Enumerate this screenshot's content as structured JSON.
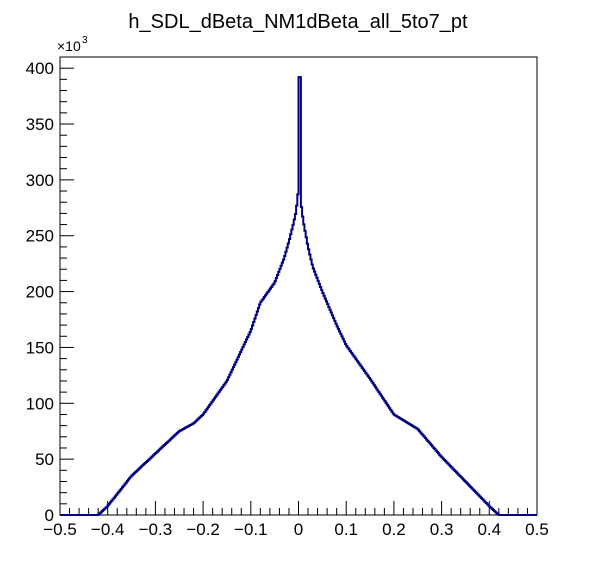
{
  "chart_data": {
    "type": "histogram",
    "title": "h_SDL_dBeta_NM1dBeta_all_5to7_pt",
    "xlabel": "",
    "ylabel": "",
    "xlim": [
      -0.5,
      0.5
    ],
    "ylim": [
      0,
      410
    ],
    "y_multiplier_label": "×10",
    "y_multiplier_exponent": "3",
    "x_ticks": [
      "−0.5",
      "−0.4",
      "−0.3",
      "−0.2",
      "−0.1",
      "0",
      "0.1",
      "0.2",
      "0.3",
      "0.4",
      "0.5"
    ],
    "y_ticks": [
      "0",
      "50",
      "100",
      "150",
      "200",
      "250",
      "300",
      "350",
      "400"
    ],
    "grid": false,
    "legend": "none",
    "line_color": "#000080",
    "series": [
      {
        "x": [
          -0.5,
          -0.42,
          -0.4,
          -0.35,
          -0.3,
          -0.25,
          -0.22,
          -0.2,
          -0.15,
          -0.1,
          -0.08,
          -0.05,
          -0.03,
          -0.02,
          -0.01,
          -0.005,
          0.0,
          0.002,
          0.004,
          0.005,
          0.01,
          0.02,
          0.03,
          0.05,
          0.08,
          0.1,
          0.15,
          0.2,
          0.25,
          0.28,
          0.3,
          0.35,
          0.4,
          0.42,
          0.5
        ],
        "y": [
          0,
          0,
          8,
          35,
          55,
          75,
          82,
          90,
          120,
          165,
          190,
          208,
          230,
          245,
          262,
          272,
          292,
          390,
          392,
          280,
          263,
          240,
          222,
          200,
          170,
          152,
          122,
          90,
          77,
          62,
          52,
          30,
          8,
          0,
          0
        ]
      }
    ]
  }
}
